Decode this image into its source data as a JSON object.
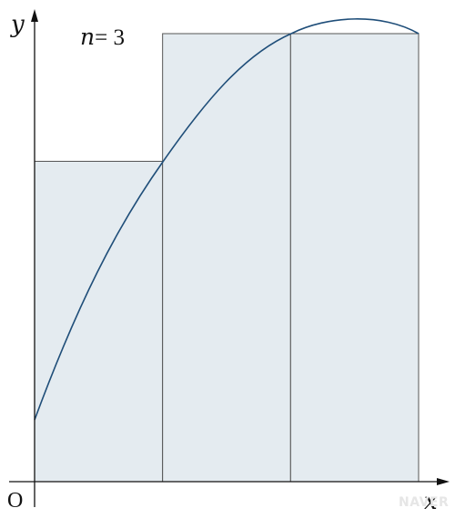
{
  "labels": {
    "n_var": "n",
    "n_eq": "= 3",
    "y_axis": "y",
    "x_axis": "x",
    "origin": "O"
  },
  "watermark": "NAVER",
  "colors": {
    "rect_fill": "#e4ebf0",
    "rect_stroke": "#555555",
    "curve": "#1f4e79",
    "axis": "#111111"
  },
  "diagram": {
    "n": 3,
    "rectangle_heights": [
      0.715,
      1.0,
      1.0
    ],
    "curve_shape": "concave parabola rising from x=0, crossing the left rectangle top at the first division, peaking between the second division and the right end"
  }
}
